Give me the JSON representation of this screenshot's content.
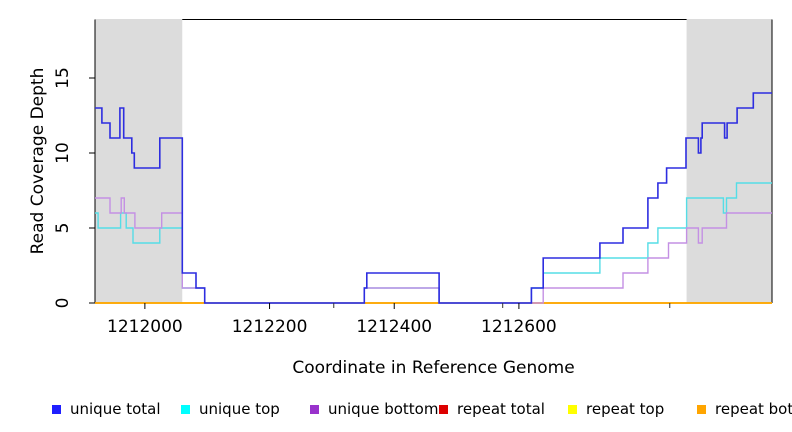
{
  "figure": {
    "xlabel": "Coordinate in Reference Genome",
    "ylabel": "Read Coverage Depth"
  },
  "chart_data": {
    "type": "line",
    "step": true,
    "title": "",
    "xlabel": "Coordinate in Reference Genome",
    "ylabel": "Read Coverage Depth",
    "xlim": [
      1211920,
      1213006
    ],
    "ylim": [
      0,
      18.9
    ],
    "x_ticks": [
      1212000,
      1212200,
      1212400,
      1212600
    ],
    "x_minor_ticks": [
      1212303,
      1212574,
      1212842
    ],
    "y_ticks": [
      0,
      5,
      10,
      15
    ],
    "grid": false,
    "legend_position": "bottom",
    "background_color": "#ffffff",
    "shaded_region_color": "#dcdcdc",
    "shaded_regions": [
      {
        "x0": 1211920,
        "x1": 1212060
      },
      {
        "x0": 1212869,
        "x1": 1213006
      }
    ],
    "draw_order": [
      "repeat total",
      "repeat top",
      "repeat bottom",
      "unique top",
      "unique bottom",
      "unique total"
    ],
    "series": [
      {
        "name": "unique total",
        "color": "#2d2de0",
        "legend_color": "#1f1fff",
        "points": [
          [
            1211920,
            13
          ],
          [
            1211931,
            12
          ],
          [
            1211944,
            11
          ],
          [
            1211960,
            13
          ],
          [
            1211966,
            11
          ],
          [
            1211979,
            10
          ],
          [
            1211983,
            9
          ],
          [
            1212024,
            11
          ],
          [
            1212060,
            2
          ],
          [
            1212082,
            1
          ],
          [
            1212096,
            0
          ],
          [
            1212352,
            1
          ],
          [
            1212356,
            2
          ],
          [
            1212472,
            0
          ],
          [
            1212620,
            1
          ],
          [
            1212639,
            3
          ],
          [
            1212730,
            4
          ],
          [
            1212767,
            5
          ],
          [
            1212807,
            7
          ],
          [
            1212823,
            8
          ],
          [
            1212837,
            9
          ],
          [
            1212868,
            11
          ],
          [
            1212888,
            10
          ],
          [
            1212892,
            11
          ],
          [
            1212894,
            12
          ],
          [
            1212930,
            11
          ],
          [
            1212934,
            12
          ],
          [
            1212950,
            13
          ],
          [
            1212976,
            14
          ],
          [
            1213006,
            14
          ]
        ]
      },
      {
        "name": "unique top",
        "color": "#55dde6",
        "legend_color": "#00ffff",
        "points": [
          [
            1211920,
            6
          ],
          [
            1211925,
            5
          ],
          [
            1211961,
            6
          ],
          [
            1211970,
            5
          ],
          [
            1211981,
            4
          ],
          [
            1212024,
            5
          ],
          [
            1212060,
            1
          ],
          [
            1212096,
            0
          ],
          [
            1212352,
            1
          ],
          [
            1212472,
            0
          ],
          [
            1212620,
            1
          ],
          [
            1212639,
            2
          ],
          [
            1212730,
            3
          ],
          [
            1212807,
            4
          ],
          [
            1212823,
            5
          ],
          [
            1212869,
            7
          ],
          [
            1212928,
            6
          ],
          [
            1212933,
            7
          ],
          [
            1212949,
            8
          ],
          [
            1213006,
            8
          ]
        ]
      },
      {
        "name": "unique bottom",
        "color": "#c490e4",
        "legend_color": "#9932cc",
        "points": [
          [
            1211920,
            7
          ],
          [
            1211944,
            6
          ],
          [
            1211962,
            7
          ],
          [
            1211967,
            6
          ],
          [
            1211984,
            5
          ],
          [
            1212027,
            6
          ],
          [
            1212060,
            1
          ],
          [
            1212096,
            0
          ],
          [
            1212352,
            1
          ],
          [
            1212472,
            0
          ],
          [
            1212639,
            1
          ],
          [
            1212767,
            2
          ],
          [
            1212807,
            3
          ],
          [
            1212840,
            4
          ],
          [
            1212869,
            5
          ],
          [
            1212888,
            4
          ],
          [
            1212894,
            5
          ],
          [
            1212933,
            6
          ],
          [
            1213006,
            6
          ]
        ]
      },
      {
        "name": "repeat total",
        "color": "#dd0000",
        "legend_color": "#dd0000",
        "points": [
          [
            1211920,
            0
          ],
          [
            1213006,
            0
          ]
        ]
      },
      {
        "name": "repeat top",
        "color": "#ffff00",
        "legend_color": "#ffff00",
        "points": [
          [
            1211920,
            0
          ],
          [
            1213006,
            0
          ]
        ]
      },
      {
        "name": "repeat bottom",
        "color": "#ffa500",
        "legend_color": "#ffa500",
        "points": [
          [
            1211920,
            0
          ],
          [
            1213006,
            0
          ]
        ]
      }
    ]
  }
}
